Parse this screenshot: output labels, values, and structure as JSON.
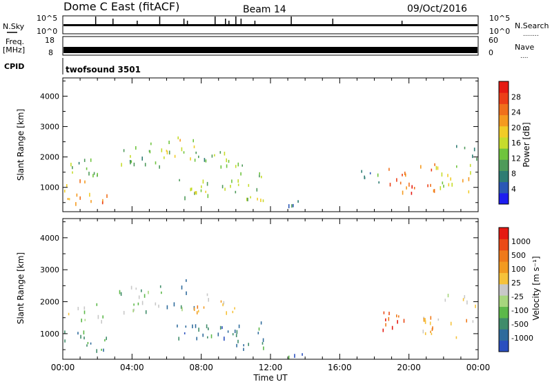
{
  "header": {
    "title": "Dome C East (fitACF)",
    "beam": "Beam 14",
    "date": "09/Oct/2016"
  },
  "top_panels": {
    "nsky_label": "N.Sky",
    "nsearch_label": "N.Search",
    "nsearch_marker": "........",
    "noise_ticks_left": [
      "10^5",
      "10^0"
    ],
    "noise_ticks_right": [
      "10^5",
      "10^0"
    ],
    "freq_label_1": "Freq.",
    "freq_label_2": "[MHz]",
    "freq_ticks": [
      "18",
      "8"
    ],
    "nave_label": "Nave",
    "nave_marker": "....",
    "nave_ticks": [
      "60",
      "0"
    ],
    "cpid_label": "CPID",
    "cpid_value": "twofsound 3501"
  },
  "chart_data": [
    {
      "type": "heatmap",
      "name": "power",
      "xlabel": "Time UT",
      "ylabel": "Slant Range [km]",
      "x_ticks": [
        "00:00",
        "04:00",
        "08:00",
        "12:00",
        "16:00",
        "20:00",
        "00:00"
      ],
      "y_ticks": [
        "1000",
        "2000",
        "3000",
        "4000"
      ],
      "xlim_hours": [
        0,
        24
      ],
      "ylim_km": [
        200,
        4600
      ],
      "colorbar": {
        "label": "Power [dB]",
        "ticks": [
          "4",
          "8",
          "12",
          "16",
          "20",
          "24",
          "28"
        ],
        "colors": [
          "#1d1df0",
          "#2a57b5",
          "#2e7c73",
          "#4e9a5a",
          "#6fc43e",
          "#c6dc2c",
          "#f1cc27",
          "#f59a1f",
          "#f0701b",
          "#ec3f17",
          "#e51a12"
        ]
      },
      "regions": [
        {
          "t0": 0.0,
          "t1": 2.6,
          "r0": 500,
          "r1": 1300,
          "level": 0.7
        },
        {
          "t0": 0.3,
          "t1": 2.4,
          "r0": 1400,
          "r1": 2000,
          "level": 0.4
        },
        {
          "t0": 3.2,
          "t1": 5.8,
          "r0": 1700,
          "r1": 2500,
          "level": 0.35
        },
        {
          "t0": 5.6,
          "t1": 7.6,
          "r0": 1800,
          "r1": 2800,
          "level": 0.5
        },
        {
          "t0": 6.5,
          "t1": 10.8,
          "r0": 700,
          "r1": 1300,
          "level": 0.45
        },
        {
          "t0": 7.5,
          "t1": 10.5,
          "r0": 1700,
          "r1": 2300,
          "level": 0.4
        },
        {
          "t0": 10.0,
          "t1": 11.6,
          "r0": 500,
          "r1": 1500,
          "level": 0.45
        },
        {
          "t0": 12.5,
          "t1": 14.0,
          "r0": 300,
          "r1": 600,
          "level": 0.2
        },
        {
          "t0": 17.0,
          "t1": 18.3,
          "r0": 1100,
          "r1": 1600,
          "level": 0.3
        },
        {
          "t0": 18.3,
          "t1": 21.5,
          "r0": 800,
          "r1": 1800,
          "level": 0.8
        },
        {
          "t0": 21.5,
          "t1": 24.0,
          "r0": 900,
          "r1": 1800,
          "level": 0.55
        },
        {
          "t0": 22.0,
          "t1": 24.0,
          "r0": 1900,
          "r1": 2400,
          "level": 0.25
        }
      ]
    },
    {
      "type": "heatmap",
      "name": "velocity",
      "xlabel": "Time UT",
      "ylabel": "Slant Range [km]",
      "x_ticks": [
        "00:00",
        "04:00",
        "08:00",
        "12:00",
        "16:00",
        "20:00",
        "00:00"
      ],
      "y_ticks": [
        "1000",
        "2000",
        "3000",
        "4000"
      ],
      "xlim_hours": [
        0,
        24
      ],
      "ylim_km": [
        200,
        4600
      ],
      "colorbar": {
        "label": "Velocity [m s⁻¹]",
        "ticks": [
          "1000",
          "500",
          "100",
          "25",
          "-25",
          "-100",
          "-500",
          "-1000"
        ],
        "colors": [
          "#2a4fbf",
          "#2f6b9c",
          "#3f8c6a",
          "#5cb84a",
          "#a7d67e",
          "#c8c8c8",
          "#f6c23a",
          "#f29a20",
          "#ef7a1a",
          "#ea4a16",
          "#e51a12"
        ]
      },
      "regions": [
        {
          "t0": 0.0,
          "t1": 2.6,
          "r0": 500,
          "r1": 1300,
          "level": 0.2
        },
        {
          "t0": 0.3,
          "t1": 2.4,
          "r0": 1400,
          "r1": 2000,
          "level": 0.45
        },
        {
          "t0": 3.2,
          "t1": 5.8,
          "r0": 1700,
          "r1": 2500,
          "level": 0.4
        },
        {
          "t0": 5.6,
          "t1": 7.6,
          "r0": 1800,
          "r1": 2800,
          "level": 0.25
        },
        {
          "t0": 6.5,
          "t1": 10.8,
          "r0": 700,
          "r1": 1300,
          "level": 0.2
        },
        {
          "t0": 7.5,
          "t1": 10.5,
          "r0": 1700,
          "r1": 2300,
          "level": 0.6
        },
        {
          "t0": 10.0,
          "t1": 11.6,
          "r0": 500,
          "r1": 1500,
          "level": 0.2
        },
        {
          "t0": 12.5,
          "t1": 14.0,
          "r0": 300,
          "r1": 600,
          "level": 0.2
        },
        {
          "t0": 18.0,
          "t1": 20.0,
          "r0": 1100,
          "r1": 1700,
          "level": 0.9
        },
        {
          "t0": 20.0,
          "t1": 24.0,
          "r0": 900,
          "r1": 1700,
          "level": 0.65
        },
        {
          "t0": 22.0,
          "t1": 24.0,
          "r0": 1900,
          "r1": 2300,
          "level": 0.45
        }
      ]
    }
  ]
}
